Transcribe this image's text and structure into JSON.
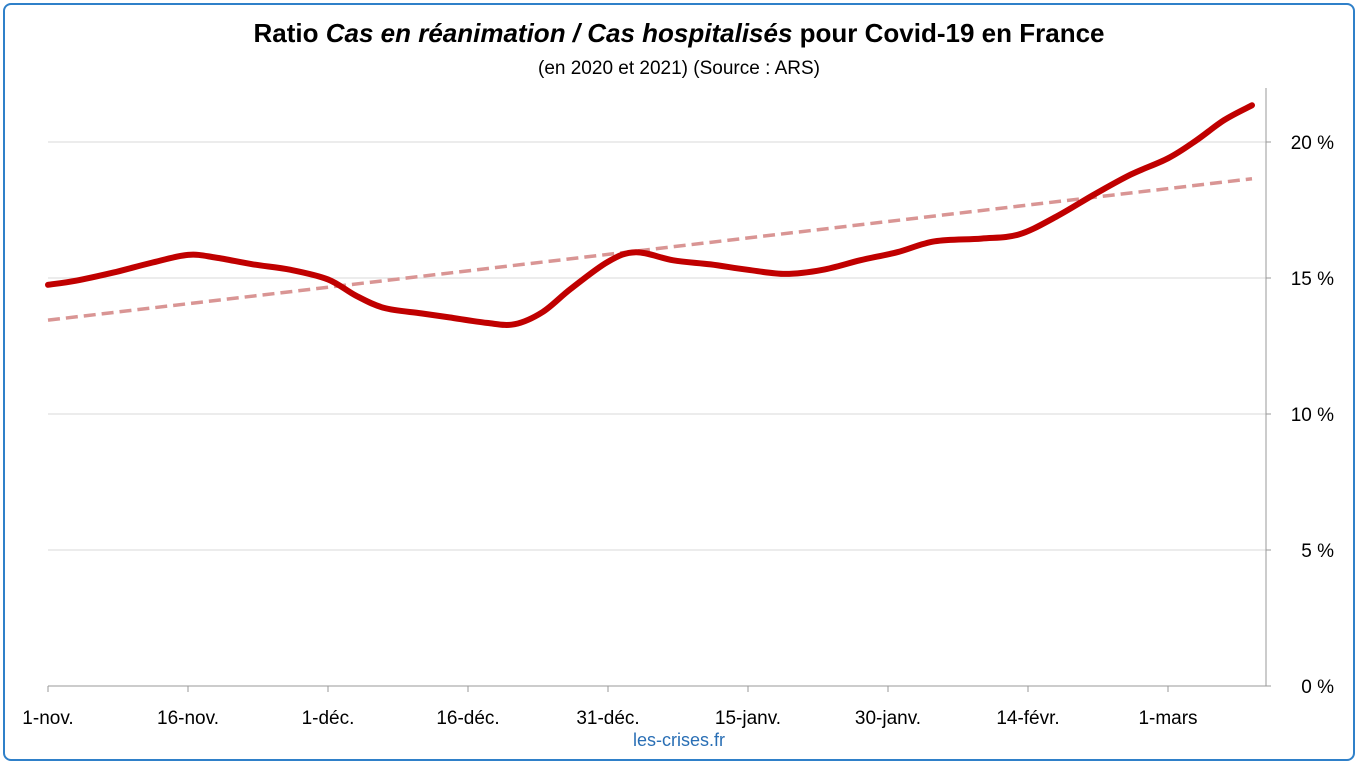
{
  "title": {
    "part1": "Ratio ",
    "part2": "Cas en réanimation / Cas hospitalisés",
    "part3": " pour Covid-19 en France"
  },
  "subtitle": "(en 2020 et 2021) (Source : ARS)",
  "credit": "les-crises.fr",
  "colors": {
    "series": "#c00000",
    "trend": "#d99594",
    "grid": "#d9d9d9",
    "axis": "#9a9a9a",
    "frame": "#2f80c9"
  },
  "chart_data": {
    "type": "line",
    "x_start": "2020-11-01",
    "x_end": "2021-03-10",
    "x_tick_labels": [
      "1-nov.",
      "16-nov.",
      "1-déc.",
      "16-déc.",
      "31-déc.",
      "15-janv.",
      "30-janv.",
      "14-févr.",
      "1-mars"
    ],
    "x_tick_dates": [
      "2020-11-01",
      "2020-11-16",
      "2020-12-01",
      "2020-12-16",
      "2020-12-31",
      "2021-01-15",
      "2021-01-30",
      "2021-02-14",
      "2021-03-01"
    ],
    "y_ticks": [
      0,
      5,
      10,
      15,
      20
    ],
    "y_tick_labels": [
      "0 %",
      "5 %",
      "10 %",
      "15 %",
      "20 %"
    ],
    "ylim": [
      0,
      22
    ],
    "y_axis_side": "right",
    "grid": true,
    "series": [
      {
        "x": [
          "2020-11-01",
          "2020-11-04",
          "2020-11-08",
          "2020-11-12",
          "2020-11-16",
          "2020-11-19",
          "2020-11-23",
          "2020-11-27",
          "2020-12-01",
          "2020-12-04",
          "2020-12-07",
          "2020-12-11",
          "2020-12-14",
          "2020-12-18",
          "2020-12-21",
          "2020-12-24",
          "2020-12-27",
          "2020-12-31",
          "2021-01-03",
          "2021-01-07",
          "2021-01-11",
          "2021-01-15",
          "2021-01-19",
          "2021-01-23",
          "2021-01-27",
          "2021-01-31",
          "2021-02-04",
          "2021-02-09",
          "2021-02-13",
          "2021-02-17",
          "2021-02-21",
          "2021-02-25",
          "2021-03-01",
          "2021-03-04",
          "2021-03-07",
          "2021-03-10"
        ],
        "y": [
          14.75,
          14.9,
          15.2,
          15.55,
          15.85,
          15.75,
          15.5,
          15.3,
          14.95,
          14.35,
          13.9,
          13.7,
          13.55,
          13.35,
          13.3,
          13.75,
          14.6,
          15.6,
          15.95,
          15.65,
          15.5,
          15.3,
          15.15,
          15.3,
          15.65,
          15.95,
          16.35,
          16.45,
          16.6,
          17.25,
          18.05,
          18.8,
          19.4,
          20.05,
          20.8,
          21.35
        ]
      },
      {
        "type": "trend",
        "x": [
          "2020-11-01",
          "2021-03-10"
        ],
        "y": [
          13.45,
          18.65
        ]
      }
    ]
  }
}
